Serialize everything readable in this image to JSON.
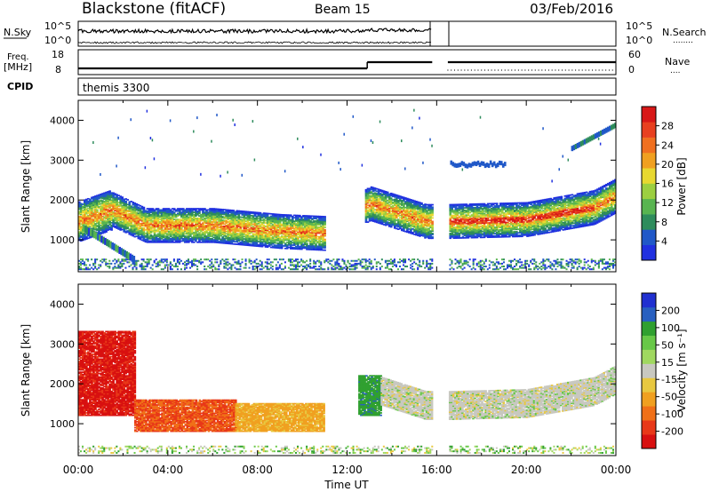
{
  "header": {
    "station": "Blackstone (fitACF)",
    "beam": "Beam 15",
    "date": "03/Feb/2016"
  },
  "panels": {
    "nsky_label": "N.Sky",
    "nsearch_label": "N.Search",
    "nsearch_dots": "........",
    "freq_label": "Freq.",
    "freq_unit": "[MHz]",
    "nave_label": "Nave",
    "nave_dots": "....",
    "cpid_label": "CPID",
    "cpid_value": "themis 3300",
    "noise_left_ticks": [
      "10^5",
      "10^0"
    ],
    "noise_right_ticks": [
      "10^5",
      "10^0"
    ],
    "freq_left_ticks": [
      "18",
      "8"
    ],
    "freq_right_ticks": [
      "60",
      "0"
    ]
  },
  "axes": {
    "ylabel": "Slant Range [km]",
    "xlabel": "Time UT",
    "yticks": [
      "1000",
      "2000",
      "3000",
      "4000"
    ],
    "xticks": [
      "00:00",
      "04:00",
      "08:00",
      "12:00",
      "16:00",
      "20:00",
      "00:00"
    ]
  },
  "colorbars": {
    "power": {
      "label": "Power [dB]",
      "ticks": [
        "4",
        "8",
        "12",
        "16",
        "20",
        "24",
        "28"
      ],
      "colors": [
        "#2030e0",
        "#2058c8",
        "#2e8c5c",
        "#58b450",
        "#9ccf40",
        "#e8d830",
        "#f0a020",
        "#f07020",
        "#e84020",
        "#d81818"
      ]
    },
    "velocity": {
      "label": "Velocity [m s⁻¹]",
      "ticks": [
        "200",
        "100",
        "50",
        "15",
        "-15",
        "-50",
        "-100",
        "-200"
      ],
      "colors": [
        "#2030d0",
        "#2860c0",
        "#30a030",
        "#68c848",
        "#a0d860",
        "#c8c8c0",
        "#e8c840",
        "#f0a020",
        "#f07018",
        "#e83818",
        "#d81010"
      ]
    }
  },
  "chart_data": {
    "type": "heatmap",
    "title": "Blackstone (fitACF) Beam 15 03/Feb/2016",
    "x_range_hours_ut": [
      0,
      24
    ],
    "y_range_km": [
      200,
      4500
    ],
    "data_gap_hours_ut": [
      15.8,
      16.5
    ],
    "frequency_mhz_segments": [
      {
        "from_hour": 0,
        "to_hour": 12.9,
        "freq_mhz": 10.5
      },
      {
        "from_hour": 12.9,
        "to_hour": 24,
        "freq_mhz": 13
      }
    ],
    "power_band_center_km": [
      {
        "hour": 0.0,
        "km": 1450
      },
      {
        "hour": 1.5,
        "km": 1750
      },
      {
        "hour": 3.0,
        "km": 1350
      },
      {
        "hour": 6.0,
        "km": 1350
      },
      {
        "hour": 9.0,
        "km": 1200
      },
      {
        "hour": 11.0,
        "km": 1150
      },
      {
        "hour": 13.0,
        "km": 1900
      },
      {
        "hour": 15.5,
        "km": 1450
      },
      {
        "hour": 16.5,
        "km": 1450
      },
      {
        "hour": 20.0,
        "km": 1500
      },
      {
        "hour": 23.0,
        "km": 1800
      },
      {
        "hour": 24.0,
        "km": 2100
      }
    ],
    "velocity_summary": [
      {
        "from_hour": 0,
        "to_hour": 2.5,
        "range_km": [
          1200,
          3300
        ],
        "velocity_ms": -200
      },
      {
        "from_hour": 2.5,
        "to_hour": 7,
        "range_km": [
          800,
          1600
        ],
        "velocity_ms": -150
      },
      {
        "from_hour": 7,
        "to_hour": 11,
        "range_km": [
          800,
          1500
        ],
        "velocity_ms": -60
      },
      {
        "from_hour": 12.5,
        "to_hour": 13.5,
        "range_km": [
          1200,
          2200
        ],
        "velocity_ms": 60
      },
      {
        "from_hour": 13.5,
        "to_hour": 24,
        "range_km": [
          1100,
          2300
        ],
        "velocity_ms": 0
      }
    ]
  }
}
